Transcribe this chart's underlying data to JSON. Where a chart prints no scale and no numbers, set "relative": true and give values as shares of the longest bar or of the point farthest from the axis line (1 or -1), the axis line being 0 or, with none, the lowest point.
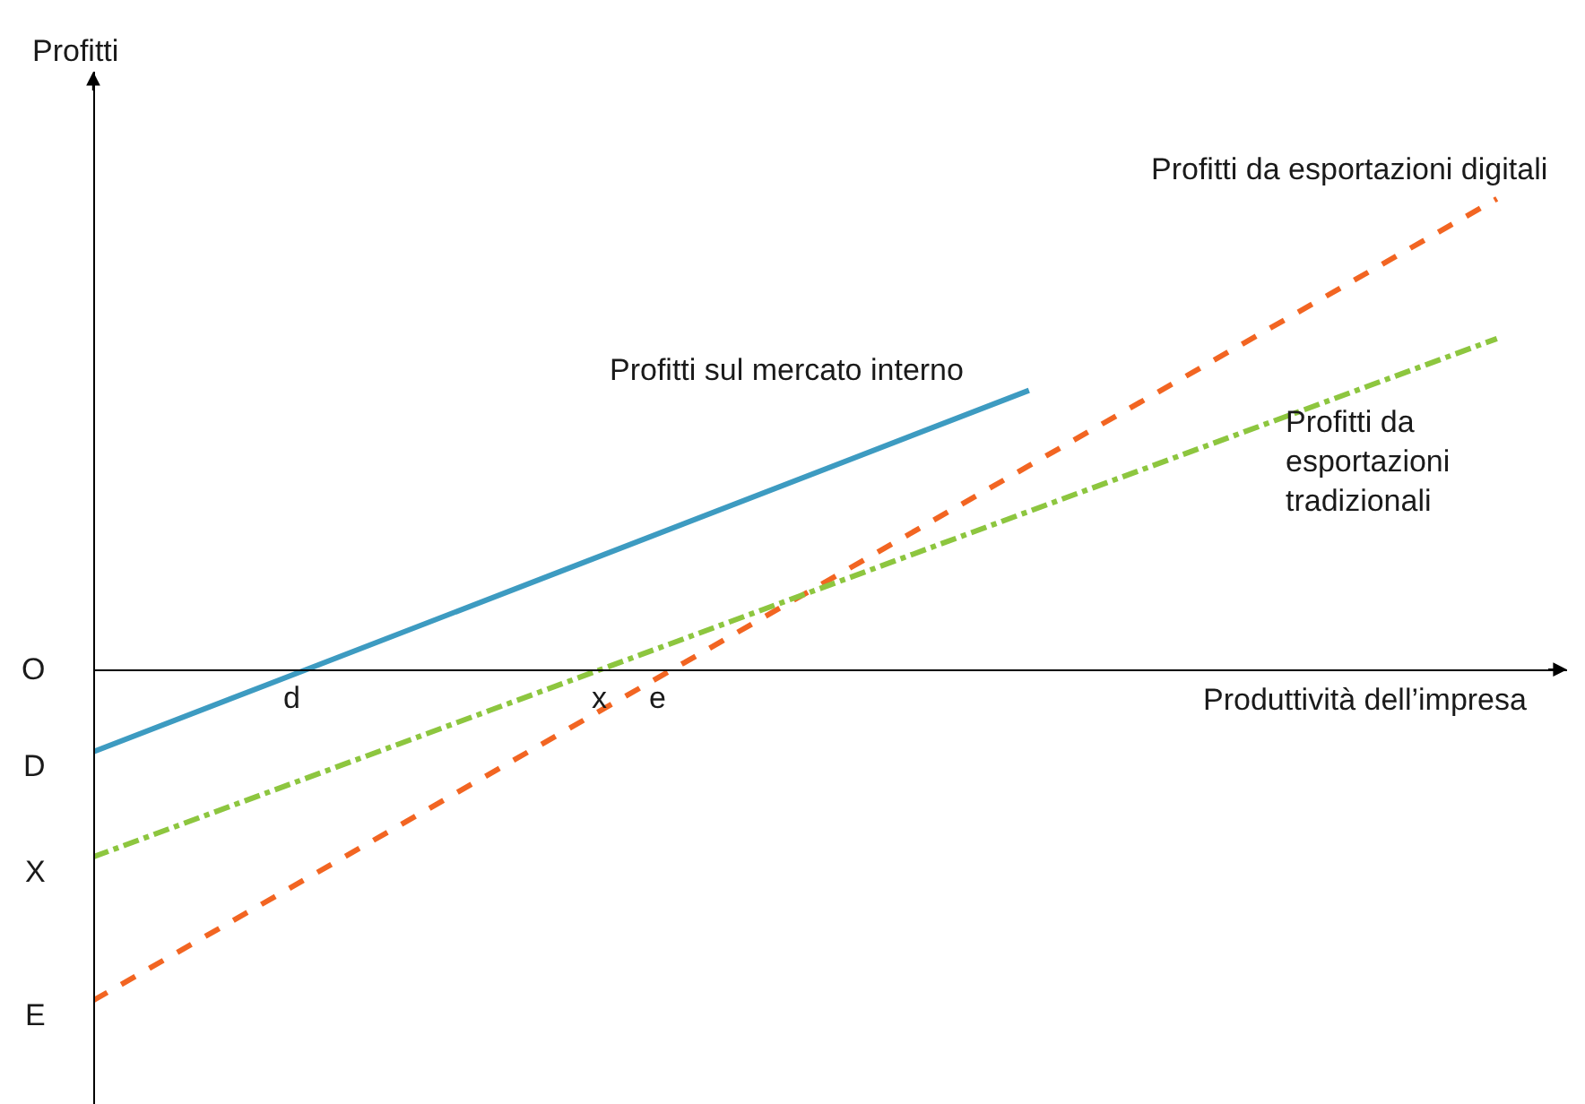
{
  "chart_data": {
    "type": "line",
    "relative": true,
    "xlabel": "Produttività dell’impresa",
    "ylabel": "Profitti",
    "categories": [
      null,
      null,
      null,
      null
    ],
    "legend": false,
    "marker": "none",
    "series": [
      {
        "name": "Profitti sul mercato interno",
        "color": "#3d9bc1",
        "line_style": "solid",
        "values": [
          -0.175,
          0.209,
          0.593,
          null
        ]
      },
      {
        "name": "Profitti da esportazioni digitali",
        "color": "#f26522",
        "line_style": "dashed",
        "values": [
          -0.703,
          -0.135,
          0.433,
          1
        ]
      },
      {
        "name": "Profitti da esportazioni tradizionali",
        "color": "#8dc63f",
        "line_style": "dashdot",
        "values": [
          -0.398,
          -0.031,
          0.336,
          0.703
        ]
      }
    ],
    "annotations": [
      "O",
      "D",
      "X",
      "E",
      "d",
      "e",
      "x"
    ]
  }
}
